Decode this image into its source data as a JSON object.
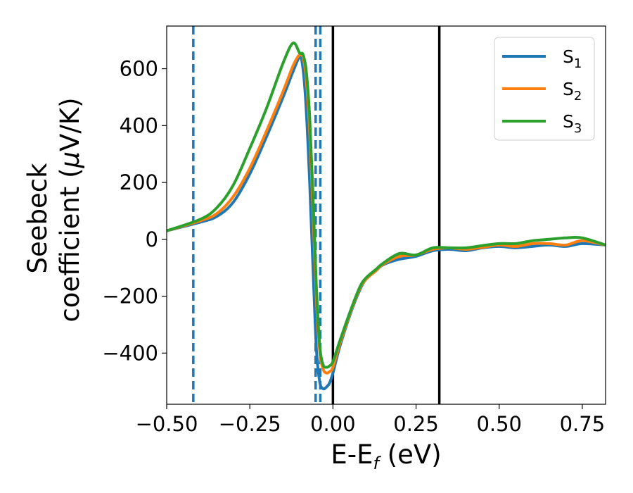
{
  "chart_data": {
    "type": "line",
    "xlabel": {
      "main": "E-E",
      "sub": "f",
      "unit": " (eV)"
    },
    "ylabel": {
      "line1": "Seebeck",
      "line2_text": "coefficient  (",
      "line2_mu": "μ",
      "line2_unit": "V/K)"
    },
    "xlim": [
      -0.5,
      0.82
    ],
    "ylim": [
      -580,
      750
    ],
    "xticks": [
      -0.5,
      -0.25,
      0.0,
      0.25,
      0.5,
      0.75
    ],
    "xtick_labels": [
      "−0.50",
      "−0.25",
      "0.00",
      "0.25",
      "0.50",
      "0.75"
    ],
    "yticks": [
      -400,
      -200,
      0,
      200,
      400,
      600
    ],
    "ytick_labels": [
      "−400",
      "−200",
      "0",
      "200",
      "400",
      "600"
    ],
    "legend_position": "top-right",
    "vlines_dashed": {
      "color": "#1f77b4",
      "x": [
        -0.42,
        -0.052,
        -0.038
      ]
    },
    "vlines_solid": {
      "color": "#000000",
      "x": [
        0.0,
        0.32
      ]
    },
    "series": [
      {
        "name": "S",
        "sub": "1",
        "color": "#1f77b4",
        "x": [
          -0.5,
          -0.4,
          -0.35,
          -0.3,
          -0.25,
          -0.2,
          -0.15,
          -0.12,
          -0.1,
          -0.09,
          -0.08,
          -0.07,
          -0.06,
          -0.05,
          -0.04,
          -0.03,
          -0.02,
          -0.01,
          0.0,
          0.02,
          0.05,
          0.08,
          0.1,
          0.13,
          0.15,
          0.2,
          0.25,
          0.3,
          0.35,
          0.4,
          0.45,
          0.5,
          0.55,
          0.6,
          0.65,
          0.7,
          0.75,
          0.82
        ],
        "y": [
          30,
          60,
          80,
          130,
          230,
          360,
          500,
          590,
          640,
          600,
          450,
          200,
          -100,
          -380,
          -500,
          -525,
          -520,
          -505,
          -470,
          -380,
          -270,
          -180,
          -140,
          -110,
          -90,
          -70,
          -60,
          -40,
          -35,
          -40,
          -30,
          -25,
          -30,
          -25,
          -20,
          -25,
          -15,
          -20
        ]
      },
      {
        "name": "S",
        "sub": "2",
        "color": "#ff7f0e",
        "x": [
          -0.5,
          -0.4,
          -0.35,
          -0.3,
          -0.25,
          -0.2,
          -0.15,
          -0.12,
          -0.1,
          -0.09,
          -0.08,
          -0.07,
          -0.06,
          -0.05,
          -0.04,
          -0.03,
          -0.02,
          -0.01,
          0.0,
          0.02,
          0.05,
          0.08,
          0.1,
          0.13,
          0.15,
          0.2,
          0.25,
          0.3,
          0.35,
          0.4,
          0.45,
          0.5,
          0.55,
          0.6,
          0.65,
          0.7,
          0.75,
          0.82
        ],
        "y": [
          30,
          65,
          90,
          150,
          250,
          380,
          520,
          610,
          650,
          640,
          560,
          380,
          100,
          -200,
          -390,
          -455,
          -470,
          -465,
          -450,
          -370,
          -265,
          -175,
          -140,
          -110,
          -88,
          -60,
          -55,
          -35,
          -30,
          -35,
          -28,
          -20,
          -25,
          -15,
          -15,
          -20,
          -5,
          -20
        ]
      },
      {
        "name": "S",
        "sub": "3",
        "color": "#2ca02c",
        "x": [
          -0.5,
          -0.4,
          -0.35,
          -0.3,
          -0.25,
          -0.2,
          -0.15,
          -0.12,
          -0.1,
          -0.09,
          -0.08,
          -0.07,
          -0.06,
          -0.05,
          -0.04,
          -0.03,
          -0.02,
          -0.01,
          0.0,
          0.02,
          0.05,
          0.08,
          0.1,
          0.13,
          0.15,
          0.2,
          0.25,
          0.3,
          0.35,
          0.4,
          0.45,
          0.5,
          0.55,
          0.6,
          0.65,
          0.7,
          0.75,
          0.82
        ],
        "y": [
          30,
          70,
          110,
          190,
          320,
          460,
          620,
          690,
          655,
          650,
          590,
          430,
          150,
          -160,
          -370,
          -440,
          -450,
          -445,
          -430,
          -360,
          -260,
          -170,
          -135,
          -105,
          -85,
          -50,
          -55,
          -30,
          -30,
          -30,
          -22,
          -15,
          -15,
          -5,
          0,
          5,
          5,
          -20
        ]
      }
    ]
  }
}
